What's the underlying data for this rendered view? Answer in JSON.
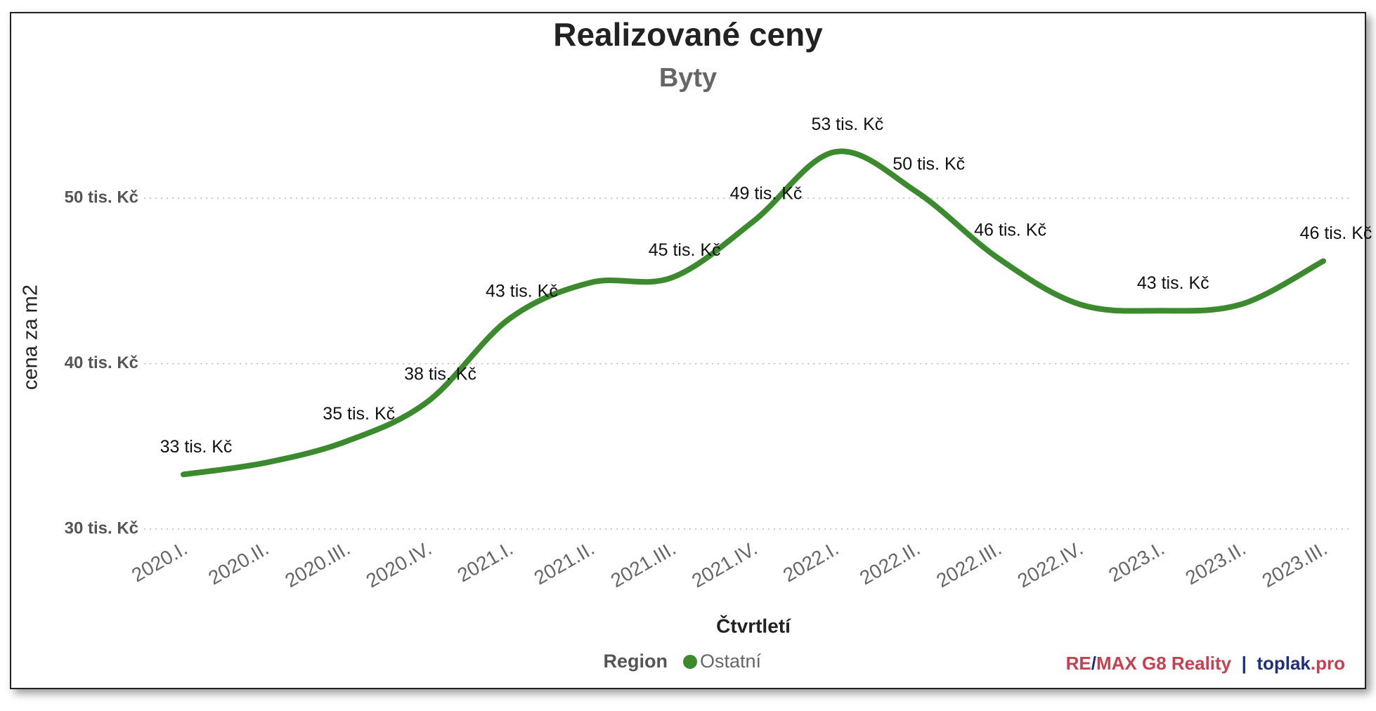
{
  "chart_data": {
    "type": "line",
    "title": "Realizované ceny",
    "subtitle": "Byty",
    "x_label": "Čtvrtletí",
    "y_label": "cena za m2",
    "categories": [
      "2020.I.",
      "2020.II.",
      "2020.III.",
      "2020.IV.",
      "2021.I.",
      "2021.II.",
      "2021.III.",
      "2021.IV.",
      "2022.I.",
      "2022.II.",
      "2022.III.",
      "2022.IV.",
      "2023.I.",
      "2023.II.",
      "2023.III."
    ],
    "legend_title": "Region",
    "series": [
      {
        "name": "Ostatní",
        "color": "#3c8a2e",
        "values": [
          33.3,
          34.0,
          35.3,
          37.7,
          42.7,
          44.9,
          45.2,
          48.6,
          52.8,
          50.4,
          46.4,
          43.6,
          43.2,
          43.6,
          46.2
        ],
        "value_labels": [
          "33 tis. Kč",
          null,
          "35 tis. Kč",
          "38 tis. Kč",
          "43 tis. Kč",
          null,
          "45 tis. Kč",
          "49 tis. Kč",
          "53 tis. Kč",
          "50 tis. Kč",
          "46 tis. Kč",
          null,
          "43 tis. Kč",
          null,
          "46 tis. Kč"
        ]
      }
    ],
    "ylim": [
      30,
      54
    ],
    "yticks": [
      {
        "value": 30,
        "label": "30 tis. Kč"
      },
      {
        "value": 40,
        "label": "40 tis. Kč"
      },
      {
        "value": 50,
        "label": "50 tis. Kč"
      }
    ],
    "grid": true,
    "brand": [
      {
        "text": "RE",
        "color": "#c8404f"
      },
      {
        "text": "/",
        "color": "#1f2f7a"
      },
      {
        "text": "MAX G8 Reality",
        "color": "#c8404f"
      },
      {
        "text": "  |  ",
        "color": "#1f2f7a"
      },
      {
        "text": "toplak",
        "color": "#1f2f7a"
      },
      {
        "text": ".pro",
        "color": "#c8404f"
      }
    ]
  }
}
